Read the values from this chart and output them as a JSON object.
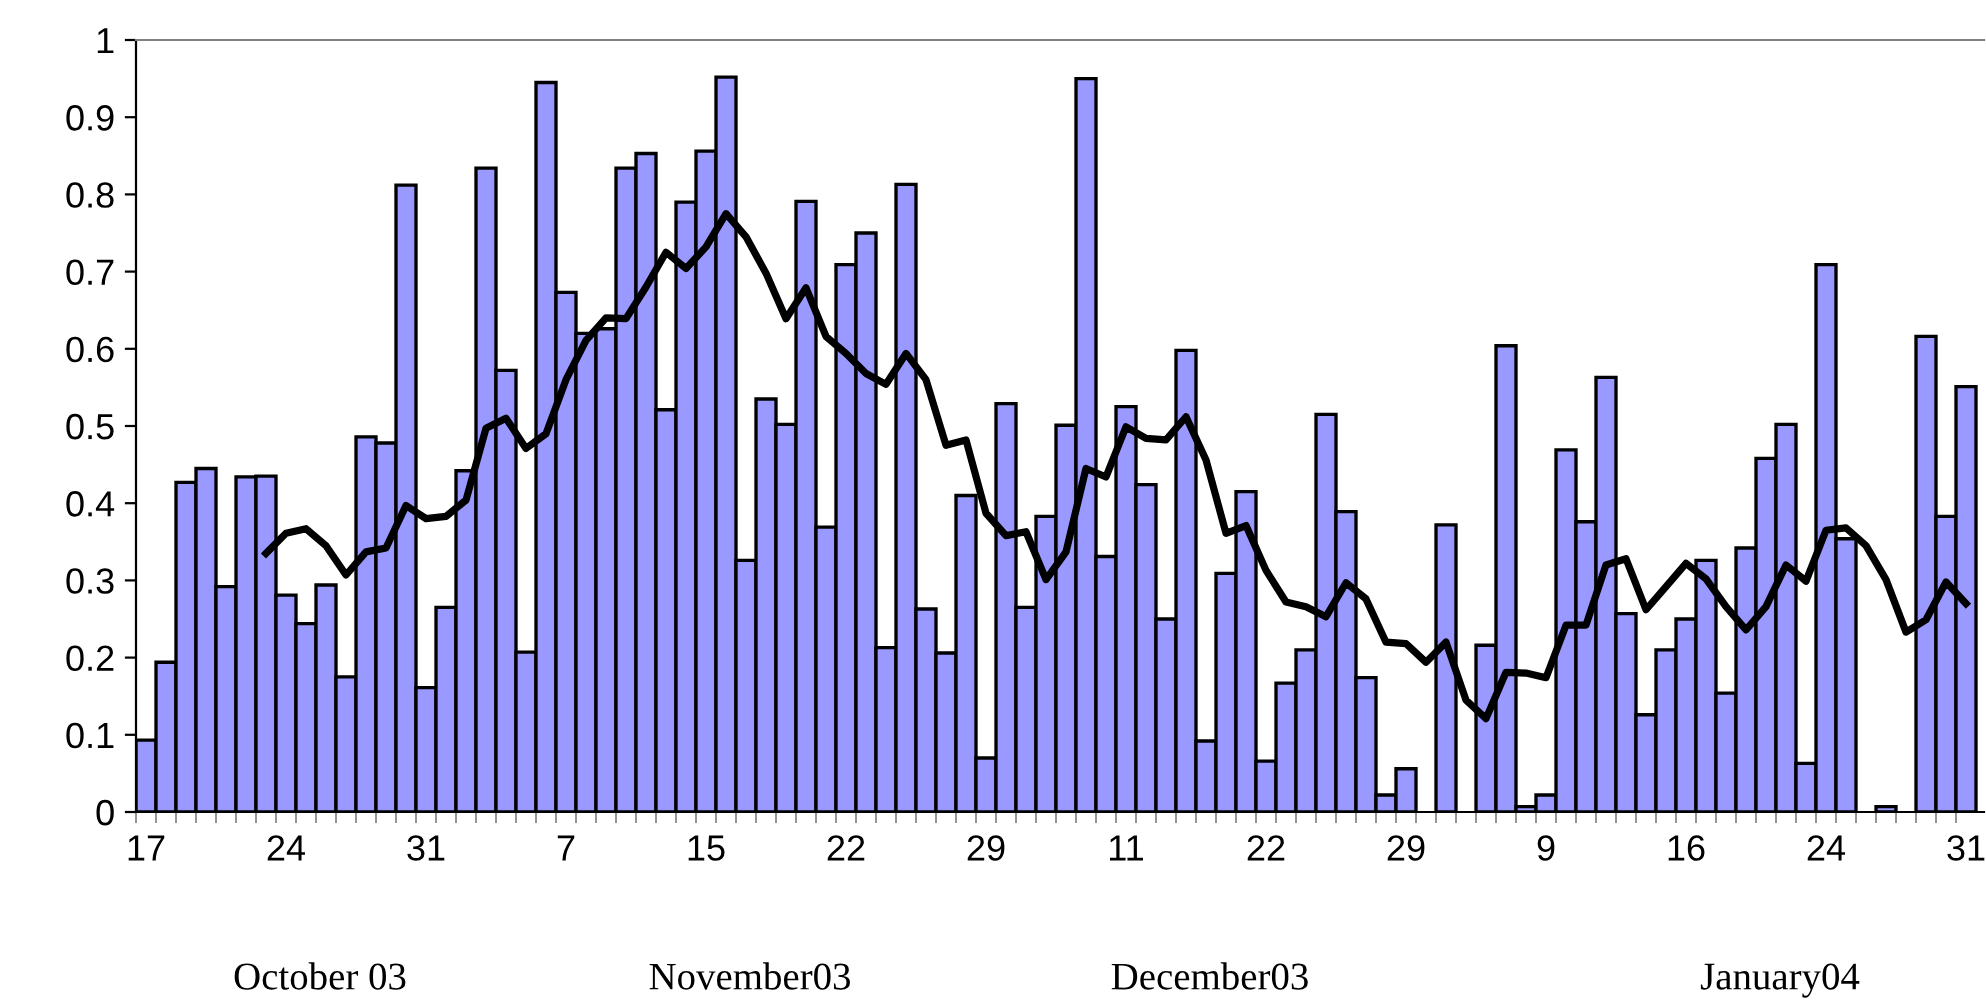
{
  "chart_data": {
    "type": "bar",
    "categories": [
      "17",
      null,
      null,
      null,
      null,
      null,
      null,
      "24",
      null,
      null,
      null,
      null,
      null,
      null,
      "31",
      null,
      null,
      null,
      null,
      null,
      null,
      "7",
      null,
      null,
      null,
      null,
      null,
      null,
      "15",
      null,
      null,
      null,
      null,
      null,
      null,
      "22",
      null,
      null,
      null,
      null,
      null,
      null,
      "29",
      null,
      null,
      null,
      null,
      null,
      null,
      "11",
      null,
      null,
      null,
      null,
      null,
      null,
      "22",
      null,
      null,
      null,
      null,
      null,
      null,
      "29",
      null,
      null,
      null,
      null,
      null,
      null,
      "9",
      null,
      null,
      null,
      null,
      null,
      null,
      "16",
      null,
      null,
      null,
      null,
      null,
      null,
      "24",
      null,
      null,
      null,
      null,
      null,
      null,
      "31"
    ],
    "series": [
      {
        "color": "#9999ff",
        "values": [
          0.093,
          0.194,
          0.427,
          0.445,
          0.292,
          0.434,
          0.435,
          0.281,
          0.244,
          0.294,
          0.175,
          0.486,
          0.478,
          0.812,
          0.161,
          0.265,
          0.442,
          0.834,
          0.572,
          0.207,
          0.945,
          0.673,
          0.62,
          0.626,
          0.834,
          0.853,
          0.521,
          0.79,
          0.856,
          0.952,
          0.326,
          0.535,
          0.502,
          0.791,
          0.369,
          0.709,
          0.75,
          0.213,
          0.813,
          0.263,
          0.206,
          0.41,
          0.07,
          0.529,
          0.265,
          0.383,
          0.501,
          0.95,
          0.331,
          0.525,
          0.424,
          0.25,
          0.598,
          0.092,
          0.309,
          0.415,
          0.066,
          0.167,
          0.21,
          0.515,
          0.389,
          0.174,
          0.022,
          0.056,
          null,
          0.372,
          null,
          0.216,
          0.604,
          0.007,
          0.022,
          0.469,
          0.376,
          0.563,
          0.257,
          0.126,
          0.21,
          0.25,
          0.326,
          0.154,
          0.342,
          0.458,
          0.502,
          0.063,
          0.709,
          0.354,
          null,
          0.007,
          null,
          0.616,
          0.383,
          0.551
        ]
      },
      {
        "type": "line",
        "color": "#000000",
        "values": [
          null,
          null,
          null,
          null,
          null,
          null,
          0.335,
          0.361,
          0.367,
          0.345,
          0.307,
          0.337,
          0.342,
          0.397,
          0.38,
          0.383,
          0.404,
          0.497,
          0.51,
          0.471,
          0.49,
          0.56,
          0.611,
          0.64,
          0.639,
          0.68,
          0.725,
          0.704,
          0.732,
          0.775,
          0.745,
          0.698,
          0.639,
          0.679,
          0.616,
          0.594,
          0.568,
          0.554,
          0.594,
          0.56,
          0.475,
          0.482,
          0.387,
          0.358,
          0.363,
          0.301,
          0.337,
          0.445,
          0.434,
          0.499,
          0.484,
          0.482,
          0.512,
          0.456,
          0.361,
          0.371,
          0.313,
          0.272,
          0.266,
          0.253,
          0.297,
          0.276,
          0.22,
          0.218,
          0.194,
          0.22,
          0.145,
          0.121,
          0.181,
          0.18,
          0.174,
          0.242,
          0.242,
          0.32,
          0.328,
          0.262,
          0.292,
          0.322,
          0.302,
          0.266,
          0.236,
          0.266,
          0.32,
          0.299,
          0.365,
          0.368,
          0.345,
          0.301,
          0.233,
          0.249,
          0.298,
          0.27
        ]
      }
    ],
    "ylim": [
      0,
      1
    ],
    "yticks": [
      0,
      0.1,
      0.2,
      0.3,
      0.4,
      0.5,
      0.6,
      0.7,
      0.8,
      0.9,
      1
    ],
    "grid": false,
    "legend": false,
    "annotations": [
      "October 03",
      "November03",
      "December03",
      "January04"
    ]
  }
}
